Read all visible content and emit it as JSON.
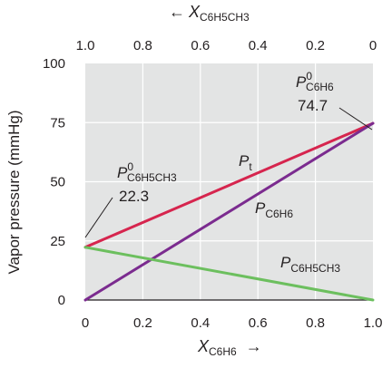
{
  "chart_data": {
    "type": "line",
    "xlabel": {
      "symbol": "X",
      "sub": "C6H6",
      "arrow": "→"
    },
    "x2label": {
      "arrow": "←",
      "symbol": "X",
      "sub": "C6H5CH3"
    },
    "ylabel": "Vapor pressure (mmHg)",
    "xlim": [
      0,
      1
    ],
    "ylim": [
      0,
      100
    ],
    "x_ticks": [
      "0",
      "0.2",
      "0.4",
      "0.6",
      "0.8",
      "1.0"
    ],
    "x2_ticks": [
      "1.0",
      "0.8",
      "0.6",
      "0.4",
      "0.2",
      "0"
    ],
    "y_ticks": [
      "0",
      "25",
      "50",
      "75",
      "100"
    ],
    "grid": true,
    "series": [
      {
        "name": "Pt",
        "color": "#d6254e",
        "x": [
          0,
          1
        ],
        "y": [
          22.3,
          74.7
        ]
      },
      {
        "name": "P C6H6",
        "color": "#7b2b8f",
        "x": [
          0,
          1
        ],
        "y": [
          0,
          74.7
        ]
      },
      {
        "name": "P C6H5CH3",
        "color": "#6cbf5e",
        "x": [
          0,
          1
        ],
        "y": [
          22.3,
          0
        ]
      }
    ],
    "annotations": [
      {
        "symbol": "P",
        "sup": "0",
        "sub": "C6H6",
        "value": "74.7",
        "x": 1,
        "y": 74.7
      },
      {
        "symbol": "P",
        "sup": "0",
        "sub": "C6H5CH3",
        "value": "22.3",
        "x": 0,
        "y": 22.3
      }
    ],
    "series_labels": [
      {
        "symbol": "P",
        "sub": "t"
      },
      {
        "symbol": "P",
        "sub": "C6H6"
      },
      {
        "symbol": "P",
        "sub": "C6H5CH3"
      }
    ]
  },
  "colors": {
    "plot_bg": "#e3e4e4",
    "grid": "#ffffff",
    "axis": "#231f20"
  }
}
